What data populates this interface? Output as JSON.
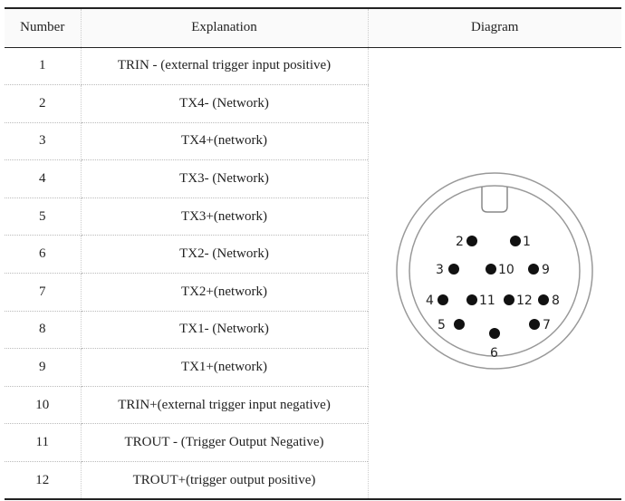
{
  "headers": {
    "number": "Number",
    "explanation": "Explanation",
    "diagram": "Diagram"
  },
  "rows": [
    {
      "number": "1",
      "explanation": "TRIN - (external trigger input positive)"
    },
    {
      "number": "2",
      "explanation": "TX4- (Network)"
    },
    {
      "number": "3",
      "explanation": "TX4+(network)"
    },
    {
      "number": "4",
      "explanation": "TX3- (Network)"
    },
    {
      "number": "5",
      "explanation": "TX3+(network)"
    },
    {
      "number": "6",
      "explanation": "TX2- (Network)"
    },
    {
      "number": "7",
      "explanation": "TX2+(network)"
    },
    {
      "number": "8",
      "explanation": "TX1- (Network)"
    },
    {
      "number": "9",
      "explanation": "TX1+(network)"
    },
    {
      "number": "10",
      "explanation": "TRIN+(external trigger input negative)"
    },
    {
      "number": "11",
      "explanation": "TROUT - (Trigger Output Negative)"
    },
    {
      "number": "12",
      "explanation": "TROUT+(trigger output positive)"
    }
  ],
  "diagram": {
    "pin_labels": [
      "1",
      "2",
      "3",
      "4",
      "5",
      "6",
      "7",
      "8",
      "9",
      "10",
      "11",
      "12"
    ]
  }
}
